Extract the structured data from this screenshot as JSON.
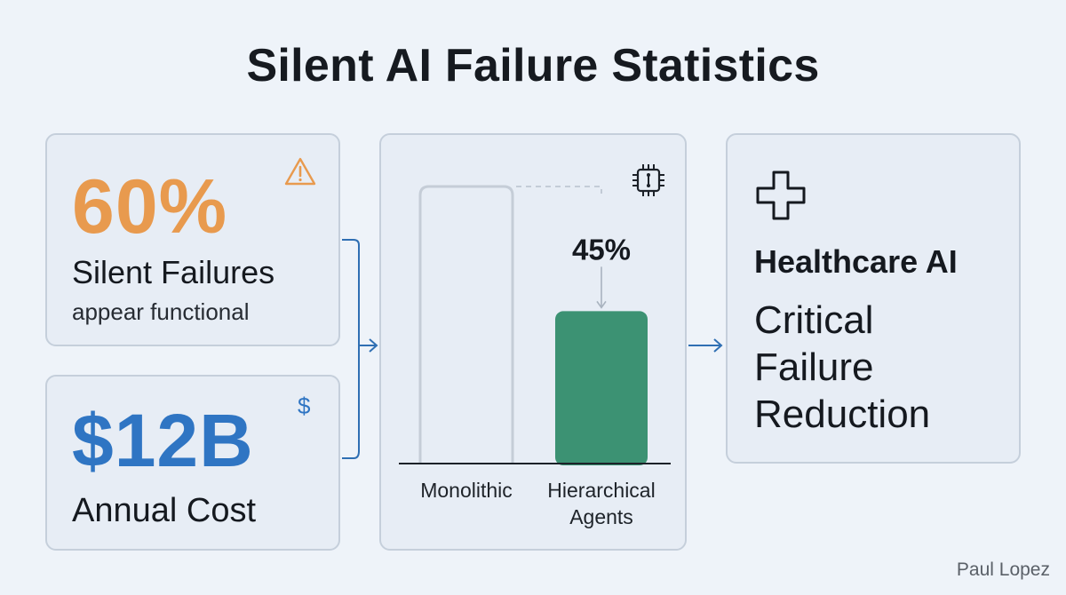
{
  "title": "Silent AI Failure Statistics",
  "cards": {
    "silent": {
      "value": "60%",
      "label": "Silent Failures",
      "sub": "appear functional",
      "icon": "warning-icon",
      "color": "#e89a4e"
    },
    "cost": {
      "value": "$12B",
      "label": "Annual Cost",
      "icon": "dollar-icon",
      "icon_glyph": "$",
      "color": "#2f75c3"
    },
    "health": {
      "icon": "plus-icon",
      "title": "Healthcare AI",
      "body": [
        "Critical",
        "Failure",
        "Reduction"
      ]
    }
  },
  "chart_data": {
    "type": "bar",
    "categories": [
      "Monolithic",
      "Hierarchical Agents"
    ],
    "category_lines": [
      [
        "Monolithic"
      ],
      [
        "Hierarchical",
        "Agents"
      ]
    ],
    "values": [
      100,
      55
    ],
    "annotation": "45%",
    "colors": {
      "outline": "#c5cdd7",
      "highlight": "#3c9273"
    },
    "icon": "chip-icon"
  },
  "author": "Paul Lopez"
}
